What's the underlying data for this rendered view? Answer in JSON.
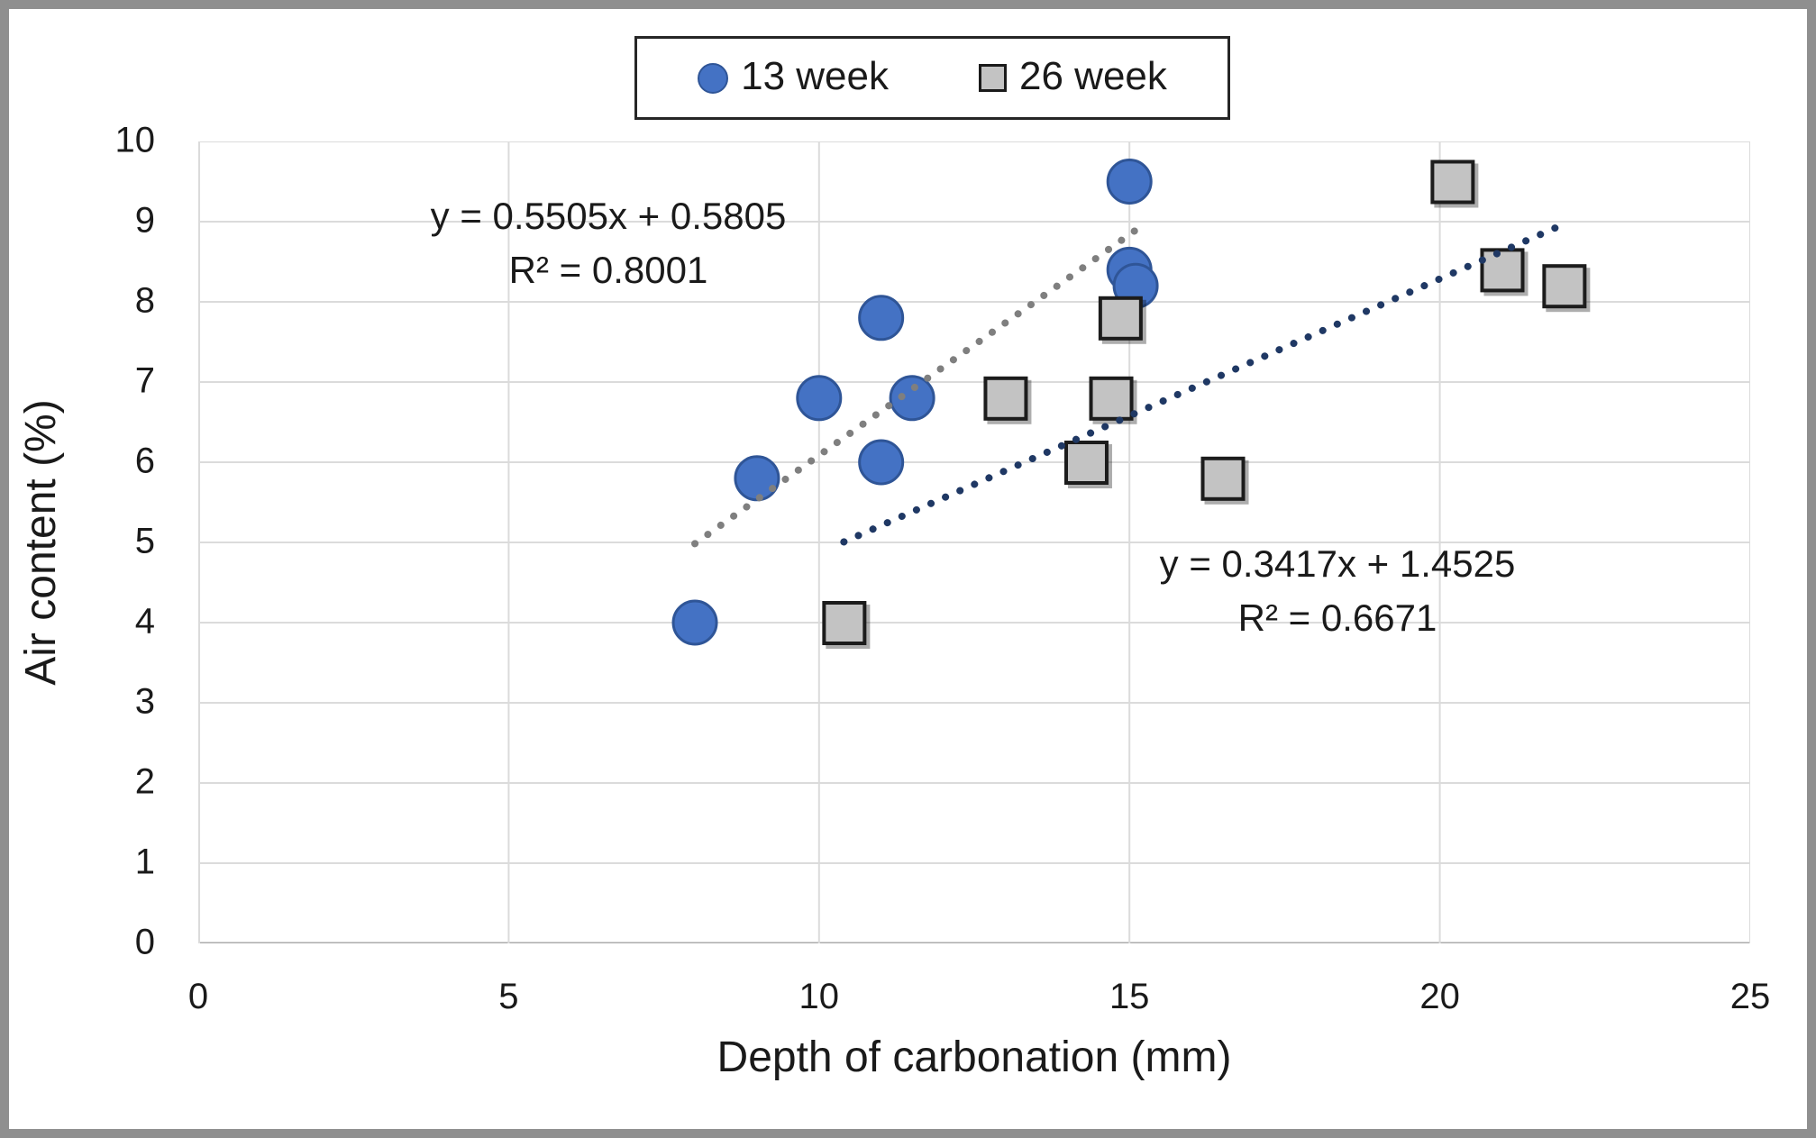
{
  "chart_data": {
    "type": "scatter",
    "xlabel": "Depth of carbonation (mm)",
    "ylabel": "Air content (%)",
    "xlim": [
      0,
      25
    ],
    "ylim": [
      0,
      10
    ],
    "xticks": [
      0,
      5,
      10,
      15,
      20,
      25
    ],
    "yticks": [
      0,
      1,
      2,
      3,
      4,
      5,
      6,
      7,
      8,
      9,
      10
    ],
    "grid": true,
    "legend_position": "top-center",
    "series": [
      {
        "name": "13 week",
        "marker": "circle",
        "color": "#4472C4",
        "border_color": "#2F5597",
        "points": [
          [
            8,
            4.0
          ],
          [
            9,
            5.8
          ],
          [
            10,
            6.8
          ],
          [
            11,
            6.0
          ],
          [
            11,
            7.8
          ],
          [
            11.5,
            6.8
          ],
          [
            15,
            9.5
          ],
          [
            15,
            8.4
          ],
          [
            15.1,
            8.2
          ]
        ],
        "trendline": {
          "slope": 0.5505,
          "intercept": 0.5805,
          "x_start": 8,
          "x_end": 15.1,
          "color": "#7F7F7F",
          "equation": "y = 0.5505x + 0.5805",
          "r_squared": "R² = 0.8001"
        }
      },
      {
        "name": "26 week",
        "marker": "square",
        "color": "#C3C3C3",
        "border_color": "#1A1A1A",
        "points": [
          [
            10.4,
            4.0
          ],
          [
            13,
            6.8
          ],
          [
            14.3,
            6.0
          ],
          [
            14.7,
            6.8
          ],
          [
            14.85,
            7.8
          ],
          [
            16.5,
            5.8
          ],
          [
            20.2,
            9.5
          ],
          [
            21,
            8.4
          ],
          [
            22,
            8.2
          ]
        ],
        "trendline": {
          "slope": 0.3417,
          "intercept": 1.4525,
          "x_start": 10.4,
          "x_end": 22,
          "color": "#1F3864",
          "equation": "y = 0.3417x + 1.4525",
          "r_squared": "R² = 0.6671"
        }
      }
    ]
  }
}
